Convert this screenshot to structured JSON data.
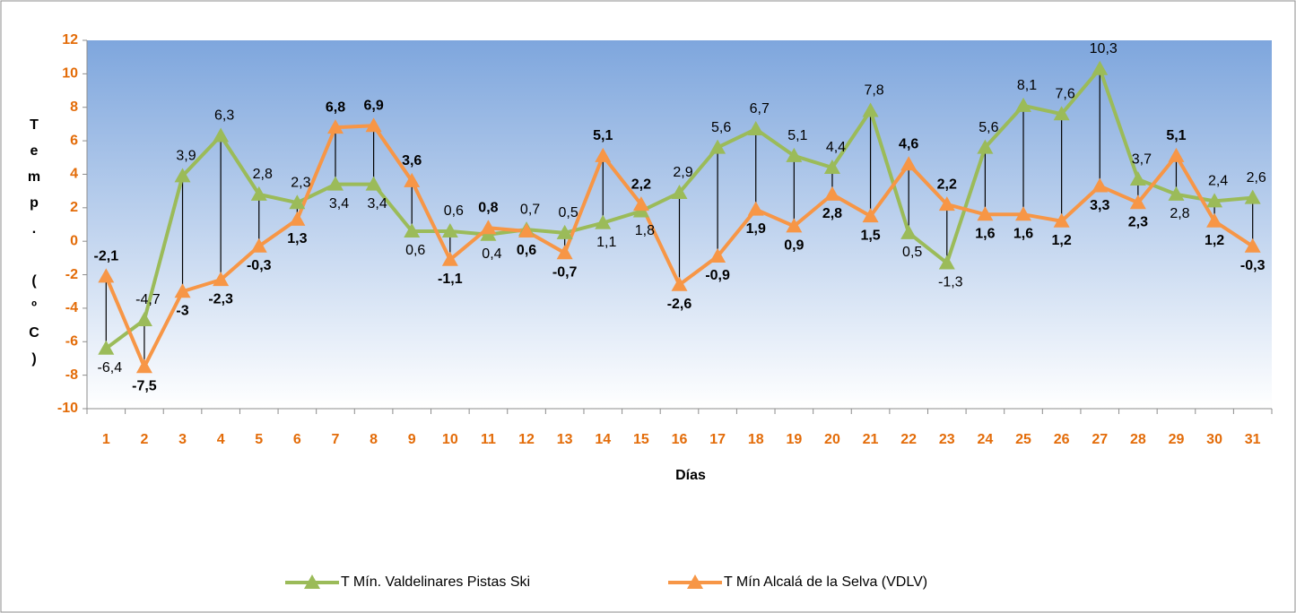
{
  "chart_data": {
    "type": "line",
    "categories": [
      "1",
      "2",
      "3",
      "4",
      "5",
      "6",
      "7",
      "8",
      "9",
      "10",
      "11",
      "12",
      "13",
      "14",
      "15",
      "16",
      "17",
      "18",
      "19",
      "20",
      "21",
      "22",
      "23",
      "24",
      "25",
      "26",
      "27",
      "28",
      "29",
      "30",
      "31"
    ],
    "series": [
      {
        "name": "T Mín. Valdelinares Pistas Ski",
        "color": "#9bbb59",
        "values": [
          -6.4,
          -4.7,
          3.9,
          6.3,
          2.8,
          2.3,
          3.4,
          3.4,
          0.6,
          0.6,
          0.4,
          0.7,
          0.5,
          1.1,
          1.8,
          2.9,
          5.6,
          6.7,
          5.1,
          4.4,
          7.8,
          0.5,
          -1.3,
          5.6,
          8.1,
          7.6,
          10.3,
          3.7,
          2.8,
          2.4,
          2.6
        ],
        "value_labels": [
          "-6,4",
          "-4,7",
          "3,9",
          "6,3",
          "2,8",
          "2,3",
          "3,4",
          "3,4",
          "0,6",
          "0,6",
          "0,4",
          "0,7",
          "0,5",
          "1,1",
          "1,8",
          "2,9",
          "5,6",
          "6,7",
          "5,1",
          "4,4",
          "7,8",
          "0,5",
          "-1,3",
          "5,6",
          "8,1",
          "7,6",
          "10,3",
          "3,7",
          "2,8",
          "2,4",
          "2,6"
        ]
      },
      {
        "name": "T Mín Alcalá de la Selva (VDLV)",
        "color": "#f79646",
        "values": [
          -2.1,
          -7.5,
          -3,
          -2.3,
          -0.3,
          1.3,
          6.8,
          6.9,
          3.6,
          -1.1,
          0.8,
          0.6,
          -0.7,
          5.1,
          2.2,
          -2.6,
          -0.9,
          1.9,
          0.9,
          2.8,
          1.5,
          4.6,
          2.2,
          1.6,
          1.6,
          1.2,
          3.3,
          2.3,
          5.1,
          1.2,
          -0.3
        ],
        "value_labels": [
          "-2,1",
          "-7,5",
          "-3",
          "-2,3",
          "-0,3",
          "1,3",
          "6,8",
          "6,9",
          "3,6",
          "-1,1",
          "0,8",
          "0,6",
          "-0,7",
          "5,1",
          "2,2",
          "-2,6",
          "-0,9",
          "1,9",
          "0,9",
          "2,8",
          "1,5",
          "4,6",
          "2,2",
          "1,6",
          "1,6",
          "1,2",
          "3,3",
          "2,3",
          "5,1",
          "1,2",
          "-0,3"
        ]
      }
    ],
    "x_label": "Días",
    "y_label": "Temp. (ºC)",
    "ylim": [
      -10,
      12
    ],
    "yticks": [
      -10,
      -8,
      -6,
      -4,
      -2,
      0,
      2,
      4,
      6,
      8,
      10,
      12
    ],
    "grid": false,
    "high_low_lines": true,
    "legend": "bottom",
    "tick_color": "#e36c09"
  }
}
